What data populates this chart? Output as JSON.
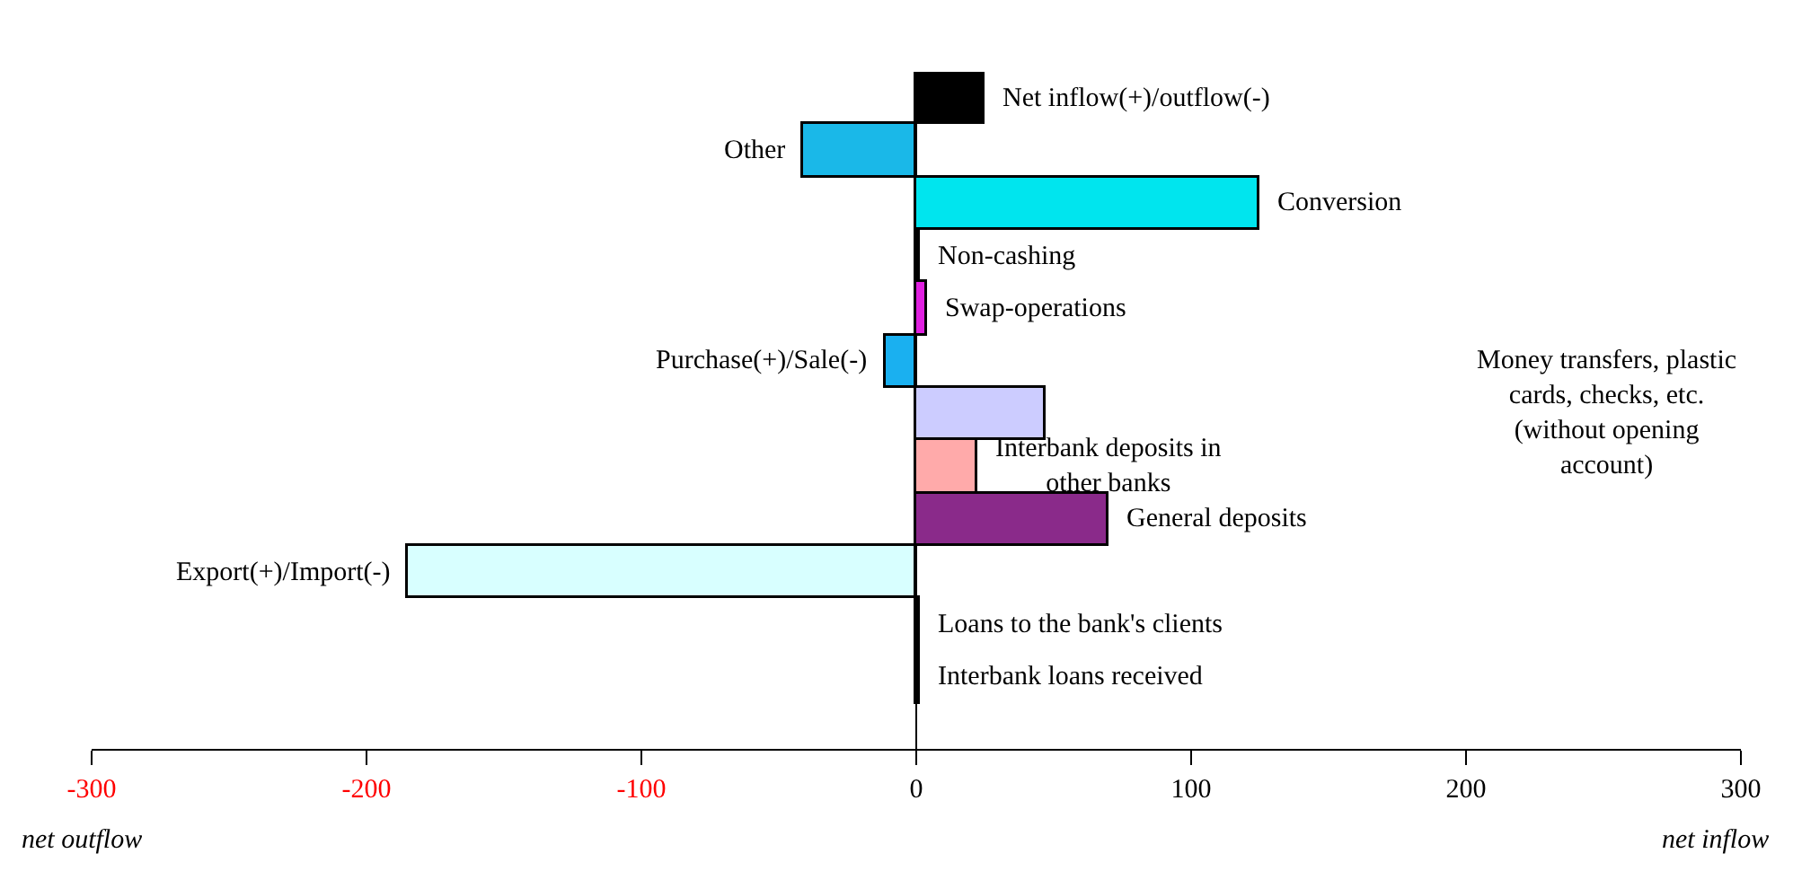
{
  "chart_data": {
    "type": "bar",
    "orientation": "horizontal",
    "categories": [
      "Net inflow(+)/outflow(-)",
      "Other",
      "Conversion",
      "Non-cashing",
      "Swap-operations",
      "Purchase(+)/Sale(-)",
      "Money transfers, plastic cards, checks, etc. (without opening account)",
      "Interbank deposits in other banks",
      "General deposits",
      "Export(+)/Import(-)",
      "Loans to the bank's clients",
      "Interbank loans received"
    ],
    "values": [
      25,
      -41,
      125,
      1,
      4,
      -11,
      47,
      22,
      70,
      -185,
      1,
      1
    ],
    "colors": [
      "#000000",
      "#1ab8e8",
      "#00e5ee",
      "#000000",
      "#e020e0",
      "#1ab0f0",
      "#ccccff",
      "#ffaaaa",
      "#8a2a8a",
      "#d8ffff",
      "#000000",
      "#000000"
    ],
    "xlim": [
      -300,
      300
    ],
    "xticks": [
      -300,
      -200,
      -100,
      0,
      100,
      200,
      300
    ],
    "tick_labels": "x",
    "grid": false,
    "annotations": [
      "net outflow",
      "net inflow"
    ]
  }
}
